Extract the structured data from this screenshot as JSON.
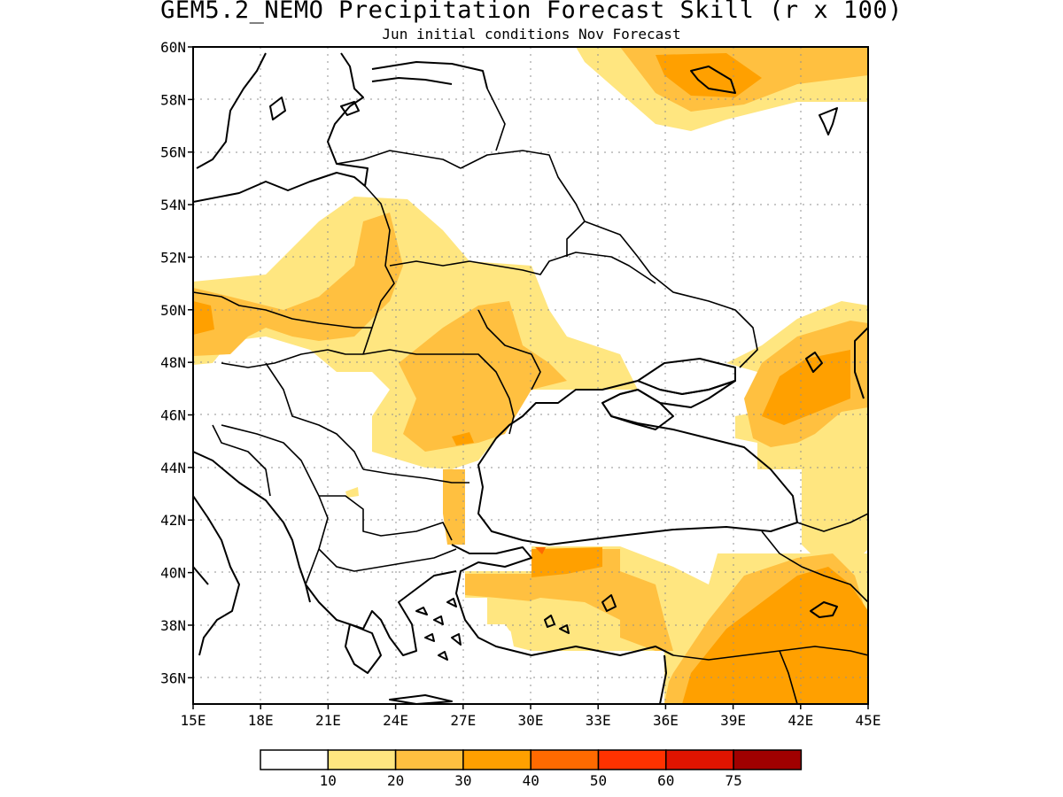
{
  "title": "GEM5.2_NEMO Precipitation Forecast Skill (r x 100)",
  "subtitle": "Jun initial conditions  Nov Forecast",
  "map": {
    "lon_range": [
      15,
      45
    ],
    "lat_range": [
      35,
      60
    ],
    "lon_ticks": [
      "15E",
      "18E",
      "21E",
      "24E",
      "27E",
      "30E",
      "33E",
      "36E",
      "39E",
      "42E",
      "45E"
    ],
    "lat_ticks": [
      "36N",
      "38N",
      "40N",
      "42N",
      "44N",
      "46N",
      "48N",
      "50N",
      "52N",
      "54N",
      "56N",
      "58N",
      "60N"
    ],
    "gridlines": "dotted",
    "coastlines": true,
    "country_borders": true
  },
  "colorbar": {
    "levels": [
      "10",
      "20",
      "30",
      "40",
      "50",
      "60",
      "75"
    ],
    "colors": [
      "#ffffff",
      "#ffe680",
      "#ffc040",
      "#ffa000",
      "#ff6a00",
      "#ff3200",
      "#e01400",
      "#a00000"
    ]
  }
}
